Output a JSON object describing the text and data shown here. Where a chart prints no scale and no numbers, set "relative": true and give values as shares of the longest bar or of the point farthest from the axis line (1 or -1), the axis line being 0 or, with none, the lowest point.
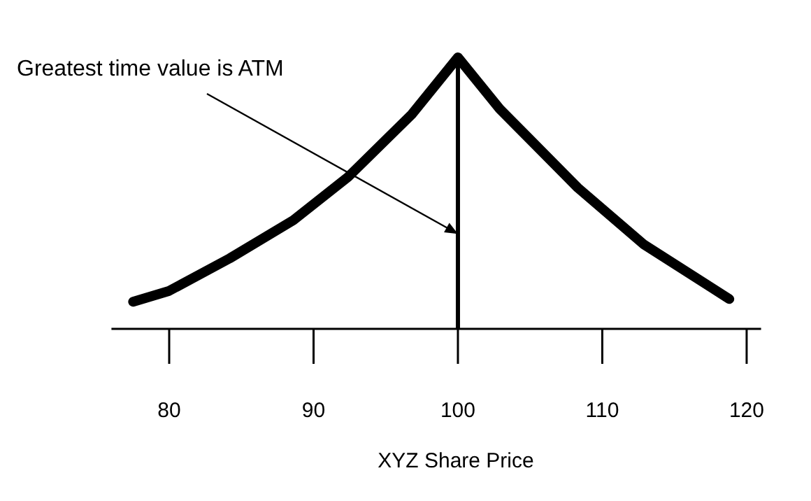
{
  "chart_data": {
    "type": "line",
    "relative": true,
    "xlabel": "XYZ Share Price",
    "xlim": [
      76,
      121
    ],
    "xticks": [
      80,
      90,
      100,
      110,
      120
    ],
    "grid": false,
    "marker": "none",
    "line_style": "solid",
    "x": [
      77.5,
      80,
      84.2,
      88.6,
      92.4,
      96.8,
      100,
      102.9,
      108.3,
      112.9,
      118.8
    ],
    "series": [
      {
        "color": "#000000",
        "values": [
          0.1,
          0.14,
          0.26,
          0.4,
          0.56,
          0.79,
          1,
          0.81,
          0.52,
          0.31,
          0.11
        ]
      }
    ],
    "ref_lines": [
      {
        "axis": "x",
        "value": 100,
        "color": "#000000"
      }
    ],
    "annotations": [
      {
        "text": "Greatest time value is ATM",
        "x": 100,
        "y": 0.35
      }
    ]
  }
}
